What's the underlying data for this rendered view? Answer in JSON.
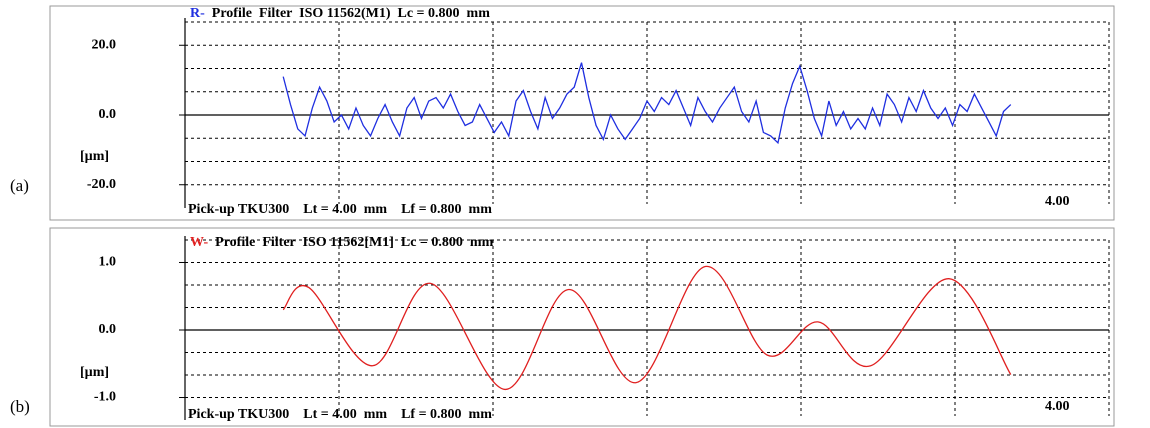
{
  "chart_data": [
    {
      "type": "line",
      "panel_label": "(a)",
      "prefix": "R-",
      "title": "Profile  Filter  ISO 11562(M1)  Lc = 0.800  mm",
      "footer": "Pick-up TKU300    Lt = 4.00  mm    Lf = 0.800  mm",
      "x_end_label": "4.00",
      "unit_label": "[µm]",
      "color": "#1f2fe0",
      "smooth": false,
      "grid": true,
      "xlim": [
        -0.54,
        4.54
      ],
      "ylim": [
        -26.67,
        26.67
      ],
      "yticks": [
        {
          "value": 20,
          "label": "20.0"
        },
        {
          "value": 0,
          "label": "0.0"
        },
        {
          "value": -20,
          "label": "-20.0"
        }
      ],
      "x": [
        0,
        0.04,
        0.08,
        0.12,
        0.16,
        0.2,
        0.24,
        0.28,
        0.32,
        0.36,
        0.4,
        0.44,
        0.48,
        0.52,
        0.56,
        0.6,
        0.64,
        0.68,
        0.72,
        0.76,
        0.8,
        0.84,
        0.88,
        0.92,
        0.96,
        1,
        1.04,
        1.08,
        1.12,
        1.16,
        1.2,
        1.24,
        1.28,
        1.32,
        1.36,
        1.4,
        1.44,
        1.48,
        1.52,
        1.56,
        1.6,
        1.64,
        1.68,
        1.72,
        1.76,
        1.8,
        1.84,
        1.88,
        1.92,
        1.96,
        2,
        2.04,
        2.08,
        2.12,
        2.16,
        2.2,
        2.24,
        2.28,
        2.32,
        2.36,
        2.4,
        2.44,
        2.48,
        2.52,
        2.56,
        2.6,
        2.64,
        2.68,
        2.72,
        2.76,
        2.8,
        2.84,
        2.88,
        2.92,
        2.96,
        3,
        3.04,
        3.08,
        3.12,
        3.16,
        3.2,
        3.24,
        3.28,
        3.32,
        3.36,
        3.4,
        3.44,
        3.48,
        3.52,
        3.56,
        3.6,
        3.64,
        3.68,
        3.72,
        3.76,
        3.8,
        3.84,
        3.88,
        3.92,
        3.96,
        4
      ],
      "values": [
        11,
        3,
        -4,
        -6,
        2,
        8,
        4,
        -2,
        0,
        -4,
        2,
        -3,
        -6,
        -1,
        3,
        -2,
        -6,
        2,
        5,
        -1,
        4,
        5,
        2,
        6,
        1,
        -3,
        -2,
        3,
        -1,
        -5,
        -2,
        -6,
        4,
        7,
        1,
        -4,
        5,
        -1,
        2,
        6,
        8,
        15,
        5,
        -3,
        -7,
        0,
        -4,
        -7,
        -4,
        -1,
        4,
        1,
        5,
        3,
        7,
        2,
        -3,
        5,
        1,
        -2,
        2,
        5,
        8,
        1,
        -2,
        4,
        -5,
        -6,
        -8,
        2,
        9,
        14,
        7,
        -1,
        -6,
        4,
        -3,
        1,
        -4,
        -1,
        -4,
        2,
        -3,
        6,
        3,
        -2,
        5,
        1,
        7,
        2,
        -1,
        2,
        -3,
        3,
        1,
        6,
        2,
        -2,
        -6,
        1,
        3
      ]
    },
    {
      "type": "line",
      "panel_label": "(b)",
      "prefix": "W-",
      "title": "Profile  Filter  ISO 11562[M1]  Lc = 0.800  mm",
      "footer": "Pick-up TKU300    Lt = 4.00  mm    Lf = 0.800  mm",
      "x_end_label": "4.00",
      "unit_label": "[µm]",
      "color": "#e02020",
      "smooth": true,
      "grid": true,
      "xlim": [
        -0.54,
        4.54
      ],
      "ylim": [
        -1.333,
        1.333
      ],
      "yticks": [
        {
          "value": 1,
          "label": "1.0"
        },
        {
          "value": 0,
          "label": "0.0"
        },
        {
          "value": -1,
          "label": "-1.0"
        }
      ],
      "x": [
        0,
        0.14,
        0.49,
        0.81,
        1.22,
        1.57,
        1.94,
        2.32,
        2.66,
        2.94,
        3.23,
        3.66,
        4
      ],
      "values": [
        0.3,
        0.63,
        -0.53,
        0.69,
        -0.88,
        0.6,
        -0.78,
        0.94,
        -0.37,
        0.12,
        -0.53,
        0.76,
        -0.66
      ]
    }
  ]
}
